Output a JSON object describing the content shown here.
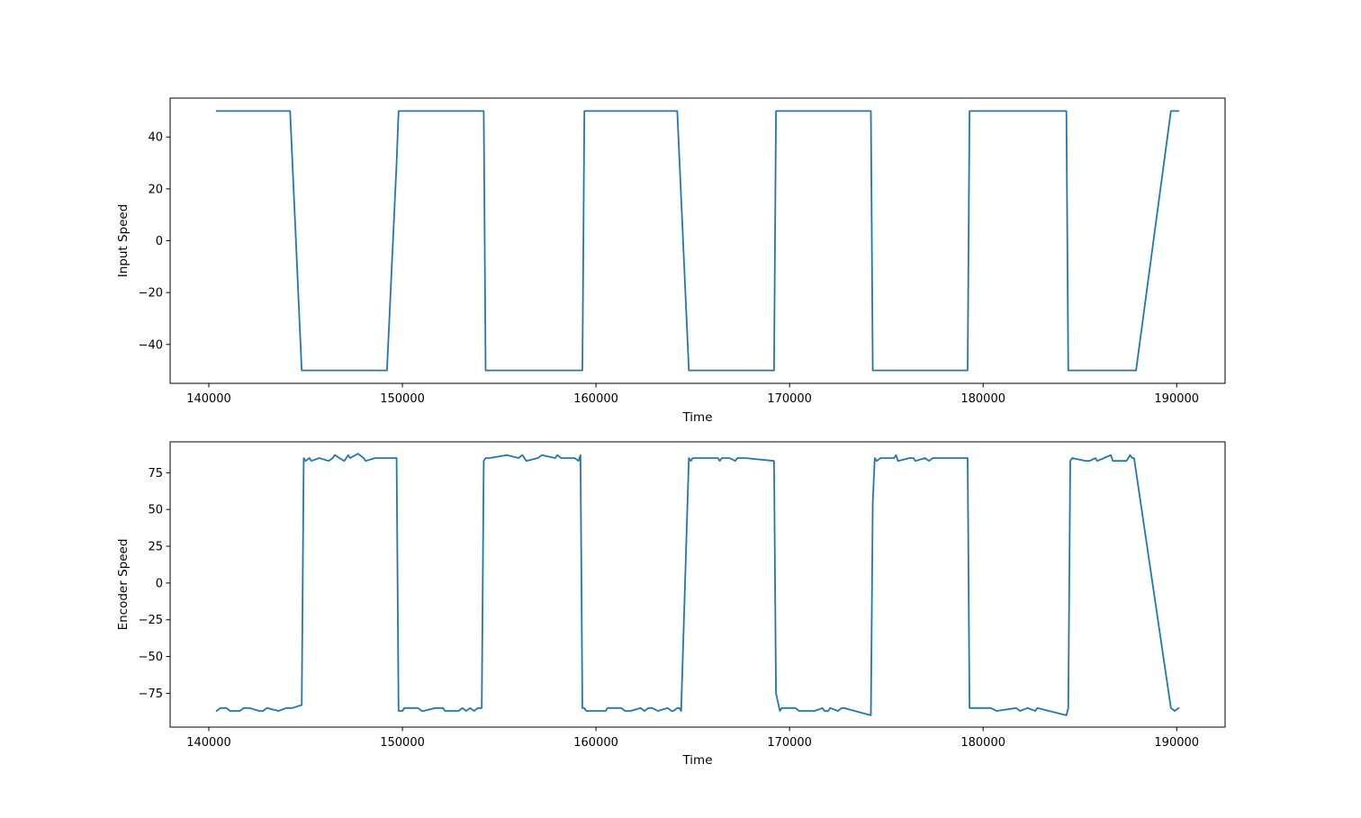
{
  "colors": {
    "series": "#1f77b4",
    "axes": "#000000",
    "background": "#ffffff"
  },
  "chart_data": [
    {
      "type": "line",
      "title": "",
      "xlabel": "Time",
      "ylabel": "Input Speed",
      "xlim": [
        138000,
        192500
      ],
      "ylim": [
        -55,
        55
      ],
      "grid": false,
      "legend": "none",
      "xticks": [
        140000,
        150000,
        160000,
        170000,
        180000,
        190000
      ],
      "xtick_labels": [
        "140000",
        "150000",
        "160000",
        "170000",
        "180000",
        "190000"
      ],
      "yticks": [
        40,
        20,
        0,
        -20,
        -40
      ],
      "ytick_labels": [
        "40",
        "20",
        "0",
        "−20",
        "−40"
      ],
      "series": [
        {
          "x": [
            140400,
            144200,
            144800,
            149200,
            149700,
            149800,
            154200,
            154300,
            159300,
            159400,
            164200,
            164800,
            169200,
            169300,
            174200,
            174300,
            179200,
            179300,
            184300,
            184400,
            187900,
            189700,
            190100
          ],
          "y": [
            50,
            50,
            -50,
            -50,
            30,
            50,
            50,
            -50,
            -50,
            50,
            50,
            -50,
            -50,
            50,
            50,
            -50,
            -50,
            50,
            50,
            -50,
            -50,
            50,
            50
          ]
        }
      ]
    },
    {
      "type": "line",
      "title": "",
      "xlabel": "Time",
      "ylabel": "Encoder Speed",
      "xlim": [
        138000,
        192500
      ],
      "ylim": [
        -98,
        96
      ],
      "grid": false,
      "legend": "none",
      "xticks": [
        140000,
        150000,
        160000,
        170000,
        180000,
        190000
      ],
      "xtick_labels": [
        "140000",
        "150000",
        "160000",
        "170000",
        "180000",
        "190000"
      ],
      "yticks": [
        75,
        50,
        25,
        0,
        -25,
        -50,
        -75
      ],
      "ytick_labels": [
        "75",
        "50",
        "25",
        "0",
        "−25",
        "−50",
        "−75"
      ],
      "series": [
        {
          "x": [
            140400,
            140600,
            140900,
            141100,
            141600,
            141800,
            142100,
            142600,
            142800,
            143000,
            143600,
            144000,
            144200,
            144300,
            144800,
            144900,
            145000,
            145200,
            145300,
            145700,
            146200,
            146400,
            146500,
            147000,
            147200,
            147300,
            147700,
            148000,
            148100,
            148600,
            149100,
            149700,
            149800,
            150000,
            150100,
            150800,
            151000,
            151100,
            151700,
            152100,
            152200,
            152900,
            153100,
            153300,
            153500,
            153700,
            153900,
            154100,
            154200,
            154300,
            154500,
            155400,
            156000,
            156200,
            156400,
            157000,
            157200,
            157900,
            158000,
            158200,
            158400,
            158900,
            159100,
            159200,
            159300,
            159400,
            159500,
            160500,
            160600,
            161300,
            161500,
            161800,
            162300,
            162500,
            162700,
            162900,
            163200,
            163700,
            163900,
            164000,
            164200,
            164300,
            164400,
            164800,
            164900,
            165000,
            165200,
            166300,
            166400,
            166500,
            166900,
            167200,
            167300,
            167700,
            169200,
            169300,
            169500,
            169600,
            170300,
            170500,
            171300,
            171700,
            171800,
            172000,
            172100,
            172500,
            172700,
            172800,
            174200,
            174300,
            174400,
            174500,
            174700,
            175400,
            175500,
            175600,
            176200,
            176400,
            176500,
            177000,
            177200,
            177400,
            179200,
            179300,
            180300,
            180400,
            180700,
            181700,
            181900,
            182300,
            182700,
            182800,
            184300,
            184400,
            184500,
            184600,
            185300,
            185500,
            185800,
            185900,
            186600,
            186700,
            187400,
            187600,
            187700,
            187800,
            189700,
            189900,
            190100
          ],
          "y": [
            -87,
            -85,
            -85,
            -87,
            -87,
            -85,
            -85,
            -87,
            -87,
            -85,
            -87,
            -85,
            -85,
            -85,
            -83,
            85,
            83,
            85,
            83,
            85,
            83,
            85,
            87,
            83,
            87,
            85,
            88,
            85,
            83,
            85,
            85,
            85,
            -87,
            -87,
            -85,
            -85,
            -87,
            -87,
            -85,
            -85,
            -87,
            -87,
            -85,
            -87,
            -85,
            -87,
            -85,
            -85,
            83,
            85,
            85,
            87,
            85,
            87,
            83,
            85,
            87,
            85,
            87,
            85,
            85,
            85,
            83,
            87,
            -85,
            -85,
            -87,
            -87,
            -85,
            -85,
            -87,
            -87,
            -85,
            -87,
            -85,
            -85,
            -87,
            -85,
            -87,
            -87,
            -85,
            -85,
            -87,
            85,
            83,
            85,
            85,
            85,
            83,
            85,
            85,
            83,
            85,
            85,
            83,
            -75,
            -87,
            -85,
            -85,
            -87,
            -87,
            -85,
            -87,
            -87,
            -85,
            -87,
            -85,
            -85,
            -90,
            55,
            85,
            83,
            85,
            85,
            87,
            83,
            85,
            85,
            83,
            85,
            83,
            85,
            85,
            -85,
            -85,
            -85,
            -87,
            -85,
            -87,
            -85,
            -87,
            -85,
            -90,
            -85,
            83,
            85,
            83,
            83,
            85,
            83,
            87,
            83,
            83,
            87,
            85,
            85,
            -85,
            -87,
            -85
          ]
        }
      ]
    }
  ]
}
